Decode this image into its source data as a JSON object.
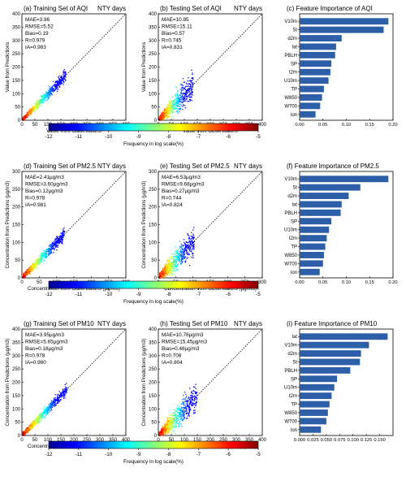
{
  "chart_data": [
    {
      "type": "scatter",
      "title": "(a) Training Set of AQI",
      "tag": "NTY days",
      "xlabel": "Value from Observations",
      "ylabel": "Value from Predictions",
      "xlim": [
        0,
        400
      ],
      "ylim": [
        0,
        400
      ],
      "xticks": [
        "0",
        "50",
        "100",
        "150",
        "200",
        "250",
        "300",
        "350",
        "400"
      ],
      "yticks": [
        "0",
        "50",
        "100",
        "150",
        "200",
        "250",
        "300",
        "350",
        "400"
      ],
      "stats": [
        "MAE=3.96",
        "RMSE=5.52",
        "Bias=0.19",
        "R=0.979",
        "IA=0.983"
      ],
      "cloud": {
        "xmax": 165,
        "spread": 0.1
      }
    },
    {
      "type": "scatter",
      "title": "(b) Testing Set of AQI",
      "tag": "NTY days",
      "xlabel": "Value from Observations",
      "ylabel": "Value from Predictions",
      "xlim": [
        0,
        400
      ],
      "ylim": [
        0,
        400
      ],
      "xticks": [
        "0",
        "50",
        "100",
        "150",
        "200",
        "250",
        "300",
        "350",
        "400"
      ],
      "yticks": [
        "0",
        "50",
        "100",
        "150",
        "200",
        "250",
        "300",
        "350",
        "400"
      ],
      "stats": [
        "MAE=10.85",
        "RMSE=15.11",
        "Bias=0.57",
        "R=0.745",
        "IA=0.831"
      ],
      "cloud": {
        "xmax": 130,
        "spread": 0.32
      }
    },
    {
      "type": "bar",
      "title": "(c) Feature Importance of AQI",
      "categories": [
        "V10m",
        "St",
        "d2m",
        "lat",
        "PBLH",
        "SP",
        "t2m",
        "U10m",
        "TP",
        "W850",
        "W700",
        "lon"
      ],
      "values": [
        0.19,
        0.18,
        0.09,
        0.078,
        0.076,
        0.068,
        0.066,
        0.062,
        0.052,
        0.048,
        0.044,
        0.034
      ],
      "xlim": [
        0,
        0.2
      ],
      "xticks": [
        "0.00",
        "0.05",
        "0.10",
        "0.15",
        "0.20"
      ]
    },
    {
      "type": "scatter",
      "title": "(d) Training Set of PM2.5",
      "tag": "NTY days",
      "xlabel": "Concentration from Observations (µg/m3)",
      "ylabel": "Concentration from Predictions (µg/m3)",
      "xlim": [
        0,
        300
      ],
      "ylim": [
        0,
        300
      ],
      "xticks": [
        "0",
        "50",
        "100",
        "150",
        "200",
        "250",
        "300"
      ],
      "yticks": [
        "0",
        "50",
        "100",
        "150",
        "200",
        "250",
        "300"
      ],
      "stats": [
        "MAE=2.41µg/m3",
        "RMSE=3.60µg/m3",
        "Bias=0.12µg/m3",
        "R=0.978",
        "IA=0.981"
      ],
      "cloud": {
        "xmax": 120,
        "spread": 0.1
      }
    },
    {
      "type": "scatter",
      "title": "(e) Testing Set of PM2.5",
      "tag": "NTY days",
      "xlabel": "Concentration from Observations (µg/m3)",
      "ylabel": "Concentration from Predictions (µg/m3)",
      "xlim": [
        0,
        300
      ],
      "ylim": [
        0,
        300
      ],
      "xticks": [
        "0",
        "50",
        "100",
        "150",
        "200",
        "250",
        "300"
      ],
      "yticks": [
        "0",
        "50",
        "100",
        "150",
        "200",
        "250",
        "300"
      ],
      "stats": [
        "MAE=6.53µg/m3",
        "RMSE=9.68µg/m3",
        "Bias=0.27µg/m3",
        "R=0.744",
        "IA=0.824"
      ],
      "cloud": {
        "xmax": 100,
        "spread": 0.32
      }
    },
    {
      "type": "bar",
      "title": "(f) Feature Importance of PM2.5",
      "categories": [
        "V10m",
        "St",
        "d2m",
        "lat",
        "PBLH",
        "SP",
        "U10m",
        "t2m",
        "TP",
        "W850",
        "W700",
        "lon"
      ],
      "values": [
        0.19,
        0.13,
        0.105,
        0.09,
        0.088,
        0.068,
        0.063,
        0.058,
        0.055,
        0.052,
        0.05,
        0.043
      ],
      "xlim": [
        0,
        0.2
      ],
      "xticks": [
        "0.00",
        "0.05",
        "0.10",
        "0.15",
        "0.20"
      ]
    },
    {
      "type": "scatter",
      "title": "(g) Training Set of PM10",
      "tag": "NTY days",
      "xlabel": "Concentration from Observations (µg/m3)",
      "ylabel": "Concentration from Predictions (µg/m3)",
      "xlim": [
        0,
        400
      ],
      "ylim": [
        0,
        400
      ],
      "xticks": [
        "0",
        "50",
        "100",
        "150",
        "200",
        "250",
        "300",
        "350",
        "400"
      ],
      "yticks": [
        "0",
        "50",
        "100",
        "150",
        "200",
        "250",
        "300",
        "350",
        "400"
      ],
      "stats": [
        "MAE=3.95µg/m3",
        "RMSE=5.65µg/m3",
        "Bias=0.18µg/m3",
        "R=0.978",
        "IA=0.980"
      ],
      "cloud": {
        "xmax": 170,
        "spread": 0.1
      }
    },
    {
      "type": "scatter",
      "title": "(h) Testing Set of PM10",
      "tag": "NTY days",
      "xlabel": "Concentration from Observations (µg/m3)",
      "ylabel": "Concentration from Predictions (µg/m3)",
      "xlim": [
        0,
        400
      ],
      "ylim": [
        0,
        400
      ],
      "xticks": [
        "0",
        "50",
        "100",
        "150",
        "200",
        "250",
        "300",
        "350",
        "400"
      ],
      "yticks": [
        "0",
        "50",
        "100",
        "150",
        "200",
        "250",
        "300",
        "350",
        "400"
      ],
      "stats": [
        "MAE=10.76µg/m3",
        "RMSE=15.45µg/m3",
        "Bias=0.48µg/m3",
        "R=0.708",
        "IA=0.804"
      ],
      "cloud": {
        "xmax": 145,
        "spread": 0.32
      }
    },
    {
      "type": "bar",
      "title": "(i) Feature Importance of PM10",
      "categories": [
        "lat",
        "V10m",
        "d2m",
        "St",
        "PBLH",
        "SP",
        "U10m",
        "t2m",
        "TP",
        "W850",
        "W700",
        "lon"
      ],
      "values": [
        0.165,
        0.13,
        0.115,
        0.113,
        0.095,
        0.07,
        0.065,
        0.06,
        0.056,
        0.053,
        0.05,
        0.04
      ],
      "xlim": [
        0,
        0.175
      ],
      "xticks": [
        "0.000",
        "0.025",
        "0.050",
        "0.075",
        "0.100",
        "0.125",
        "0.150"
      ]
    }
  ],
  "colorbars": [
    {
      "label": "Frequency in log scale(%)",
      "ticks": [
        "-12",
        "-11",
        "-10",
        "-9",
        "-8",
        "-7",
        "-6",
        "-5"
      ],
      "range": [
        -12,
        -5
      ]
    },
    {
      "label": "Frequency in log scale(%)",
      "ticks": [
        "-12",
        "-11",
        "-10",
        "-9",
        "-8",
        "-7",
        "-6",
        "-5"
      ],
      "range": [
        -12,
        -5
      ]
    },
    {
      "label": "Frequency in log scale(%)",
      "ticks": [
        "-12",
        "-11",
        "-10",
        "-9",
        "-8",
        "-7",
        "-6",
        "-5"
      ],
      "range": [
        -12,
        -5
      ]
    }
  ],
  "colors": {
    "bar": "#2d5fa8",
    "colormap": [
      "#00008f",
      "#0000ff",
      "#0080ff",
      "#00ffff",
      "#80ff80",
      "#ffff00",
      "#ff8000",
      "#ff0000",
      "#800000"
    ]
  }
}
